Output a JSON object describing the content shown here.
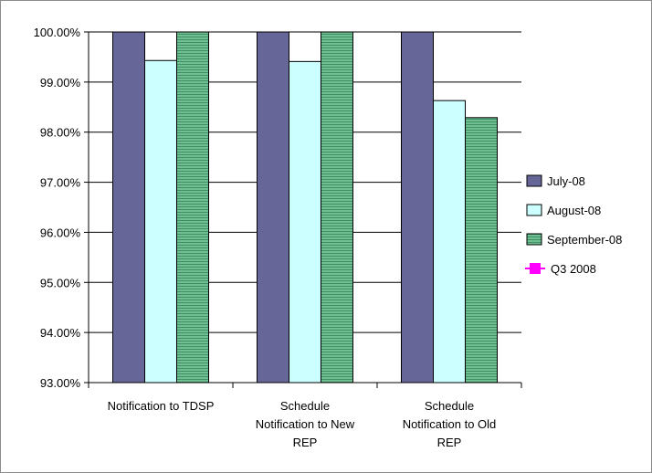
{
  "chart_data": {
    "type": "bar",
    "title": "",
    "xlabel": "",
    "ylabel": "",
    "ylim": [
      0.93,
      1.0
    ],
    "yticks": [
      "100.00%",
      "99.00%",
      "98.00%",
      "97.00%",
      "96.00%",
      "95.00%",
      "94.00%",
      "93.00%"
    ],
    "categories": [
      [
        "Notification to TDSP"
      ],
      [
        "Schedule",
        "Notification to New",
        "REP"
      ],
      [
        "Schedule",
        "Notification to Old",
        "REP"
      ]
    ],
    "series": [
      {
        "name": "July-08",
        "values": [
          1.0,
          1.0,
          1.0
        ],
        "color": "#666699",
        "pattern": "solid"
      },
      {
        "name": "August-08",
        "values": [
          0.9943,
          0.9941,
          0.9863
        ],
        "color": "#ccffff",
        "pattern": "solid"
      },
      {
        "name": "September-08",
        "values": [
          1.0,
          1.0,
          0.9829
        ],
        "color": "#5fae85",
        "pattern": "hatch"
      }
    ],
    "line_series": [
      {
        "name": "Q3 2008",
        "values": [],
        "color": "#ff00ff",
        "marker": "square"
      }
    ],
    "grid": true,
    "legend": "right"
  }
}
